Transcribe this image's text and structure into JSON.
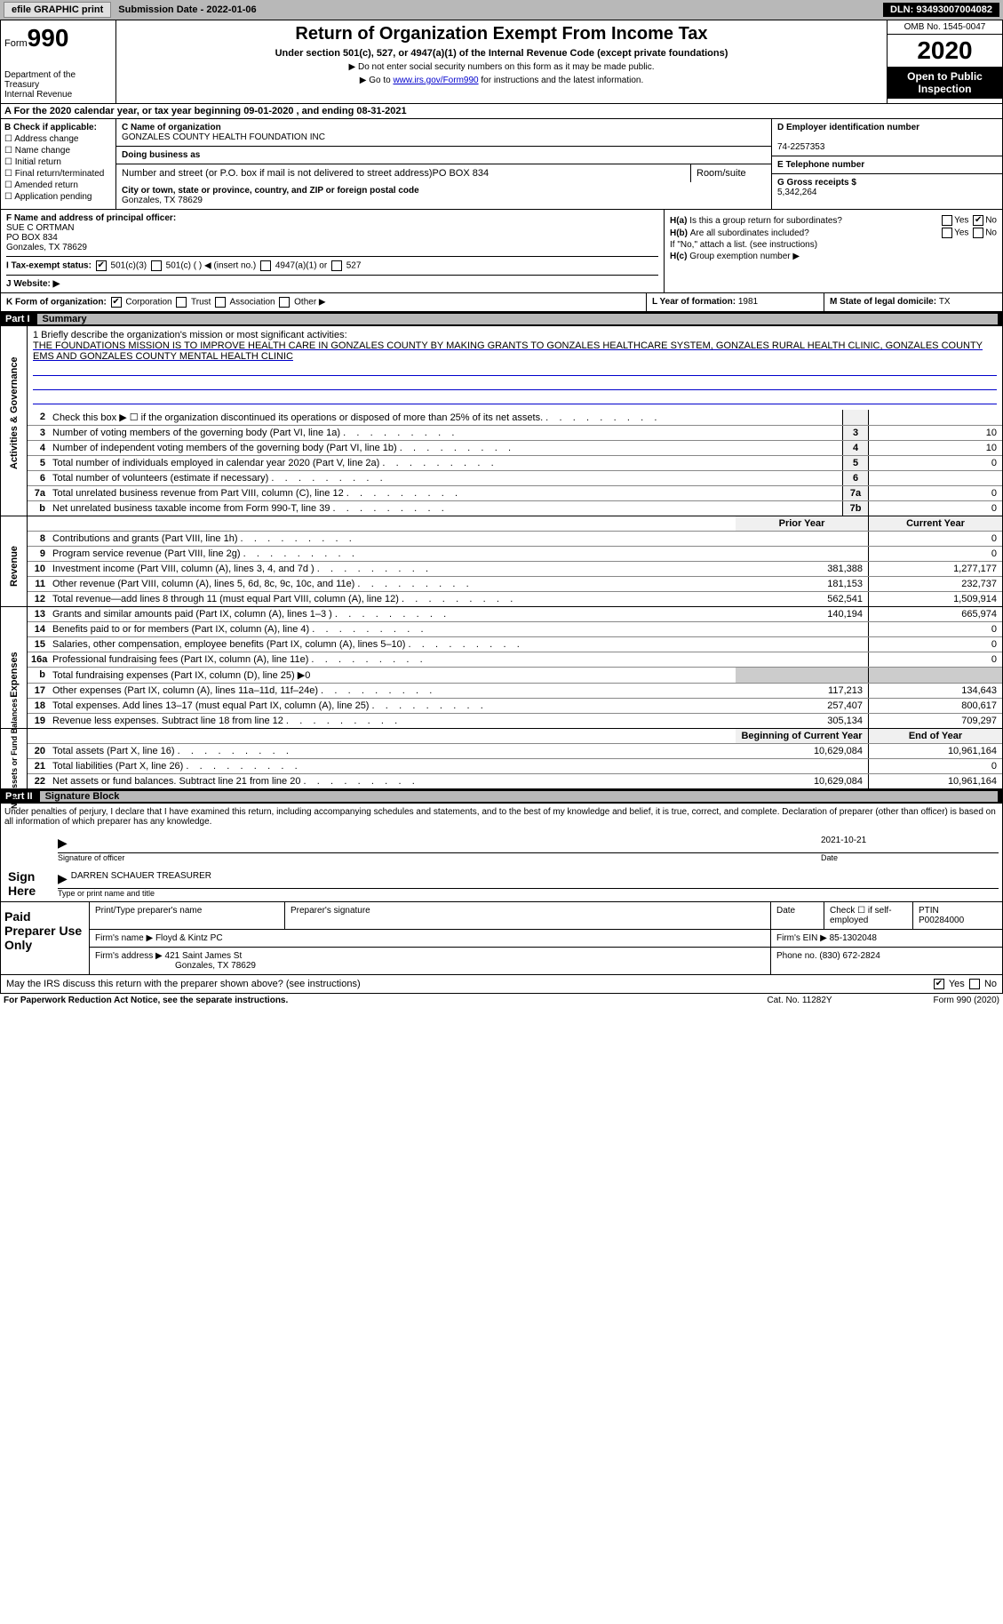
{
  "topbar": {
    "efile": "efile GRAPHIC print",
    "sub_label": "Submission Date - ",
    "sub_date": "2022-01-06",
    "dln_label": "DLN: ",
    "dln": "93493007004082"
  },
  "header": {
    "form_label": "Form",
    "form_no": "990",
    "dept": "Department of the Treasury\nInternal Revenue",
    "title": "Return of Organization Exempt From Income Tax",
    "sub1": "Under section 501(c), 527, or 4947(a)(1) of the Internal Revenue Code (except private foundations)",
    "sub2a": "▶ Do not enter social security numbers on this form as it may be made public.",
    "sub2b": "▶ Go to ",
    "link": "www.irs.gov/Form990",
    "sub2c": " for instructions and the latest information.",
    "omb": "OMB No. 1545-0047",
    "year": "2020",
    "open": "Open to Public Inspection"
  },
  "row_a": "A For the 2020 calendar year, or tax year beginning 09-01-2020    , and ending 08-31-2021",
  "col_b": {
    "label": "B Check if applicable:",
    "opts": [
      "Address change",
      "Name change",
      "Initial return",
      "Final return/terminated",
      "Amended return",
      "Application pending"
    ]
  },
  "col_c": {
    "name_lbl": "C Name of organization",
    "name": "GONZALES COUNTY HEALTH FOUNDATION INC",
    "dba_lbl": "Doing business as",
    "dba": "",
    "addr_lbl": "Number and street (or P.O. box if mail is not delivered to street address)",
    "addr": "PO BOX 834",
    "room_lbl": "Room/suite",
    "room": "",
    "city_lbl": "City or town, state or province, country, and ZIP or foreign postal code",
    "city": "Gonzales, TX  78629"
  },
  "col_de": {
    "d_lbl": "D Employer identification number",
    "d": "74-2257353",
    "e_lbl": "E Telephone number",
    "e": "",
    "g_lbl": "G Gross receipts $ ",
    "g": "5,342,264"
  },
  "col_f": {
    "lbl": "F Name and address of principal officer:",
    "name": "SUE C ORTMAN",
    "addr1": "PO BOX 834",
    "addr2": "Gonzales, TX  78629"
  },
  "col_h": {
    "a_lbl": "H(a)",
    "a_q": "Is this a group return for subordinates?",
    "a_yes": "Yes",
    "a_no": "No",
    "b_lbl": "H(b)",
    "b_q": "Are all subordinates included?",
    "b_note": "If \"No,\" attach a list. (see instructions)",
    "c_lbl": "H(c)",
    "c_q": "Group exemption number ▶"
  },
  "row_i": {
    "lbl": "I   Tax-exempt status:",
    "o1": "501(c)(3)",
    "o2": "501(c) (  ) ◀ (insert no.)",
    "o3": "4947(a)(1) or",
    "o4": "527"
  },
  "row_j": "J   Website: ▶",
  "row_k": {
    "lbl": "K Form of organization:",
    "o1": "Corporation",
    "o2": "Trust",
    "o3": "Association",
    "o4": "Other ▶"
  },
  "row_l": {
    "lbl": "L Year of formation: ",
    "v": "1981"
  },
  "row_m": {
    "lbl": "M State of legal domicile: ",
    "v": "TX"
  },
  "part1": {
    "pn": "Part I",
    "pt": "Summary"
  },
  "mission": {
    "lbl": "1  Briefly describe the organization's mission or most significant activities:",
    "txt": "THE FOUNDATIONS MISSION IS TO IMPROVE HEALTH CARE IN GONZALES COUNTY BY MAKING GRANTS TO GONZALES HEALTHCARE SYSTEM, GONZALES RURAL HEALTH CLINIC, GONZALES COUNTY EMS AND GONZALES COUNTY MENTAL HEALTH CLINIC"
  },
  "side_labels": {
    "gov": "Activities & Governance",
    "rev": "Revenue",
    "exp": "Expenses",
    "net": "Net Assets or Fund Balances"
  },
  "gov_rows": [
    {
      "n": "2",
      "t": "Check this box ▶ ☐  if the organization discontinued its operations or disposed of more than 25% of its net assets."
    },
    {
      "n": "3",
      "t": "Number of voting members of the governing body (Part VI, line 1a)",
      "rn": "3",
      "v2": "10"
    },
    {
      "n": "4",
      "t": "Number of independent voting members of the governing body (Part VI, line 1b)",
      "rn": "4",
      "v2": "10"
    },
    {
      "n": "5",
      "t": "Total number of individuals employed in calendar year 2020 (Part V, line 2a)",
      "rn": "5",
      "v2": "0"
    },
    {
      "n": "6",
      "t": "Total number of volunteers (estimate if necessary)",
      "rn": "6",
      "v2": ""
    },
    {
      "n": "7a",
      "t": "Total unrelated business revenue from Part VIII, column (C), line 12",
      "rn": "7a",
      "v2": "0"
    },
    {
      "n": "b",
      "t": "Net unrelated business taxable income from Form 990-T, line 39",
      "rn": "7b",
      "v2": "0"
    }
  ],
  "col_hdrs": {
    "py": "Prior Year",
    "cy": "Current Year"
  },
  "rev_rows": [
    {
      "n": "8",
      "t": "Contributions and grants (Part VIII, line 1h)",
      "v1": "",
      "v2": "0"
    },
    {
      "n": "9",
      "t": "Program service revenue (Part VIII, line 2g)",
      "v1": "",
      "v2": "0"
    },
    {
      "n": "10",
      "t": "Investment income (Part VIII, column (A), lines 3, 4, and 7d )",
      "v1": "381,388",
      "v2": "1,277,177"
    },
    {
      "n": "11",
      "t": "Other revenue (Part VIII, column (A), lines 5, 6d, 8c, 9c, 10c, and 11e)",
      "v1": "181,153",
      "v2": "232,737"
    },
    {
      "n": "12",
      "t": "Total revenue—add lines 8 through 11 (must equal Part VIII, column (A), line 12)",
      "v1": "562,541",
      "v2": "1,509,914"
    }
  ],
  "exp_rows": [
    {
      "n": "13",
      "t": "Grants and similar amounts paid (Part IX, column (A), lines 1–3 )",
      "v1": "140,194",
      "v2": "665,974"
    },
    {
      "n": "14",
      "t": "Benefits paid to or for members (Part IX, column (A), line 4)",
      "v1": "",
      "v2": "0"
    },
    {
      "n": "15",
      "t": "Salaries, other compensation, employee benefits (Part IX, column (A), lines 5–10)",
      "v1": "",
      "v2": "0"
    },
    {
      "n": "16a",
      "t": "Professional fundraising fees (Part IX, column (A), line 11e)",
      "v1": "",
      "v2": "0"
    },
    {
      "n": "b",
      "t": "Total fundraising expenses (Part IX, column (D), line 25) ▶0",
      "shade": true
    },
    {
      "n": "17",
      "t": "Other expenses (Part IX, column (A), lines 11a–11d, 11f–24e)",
      "v1": "117,213",
      "v2": "134,643"
    },
    {
      "n": "18",
      "t": "Total expenses. Add lines 13–17 (must equal Part IX, column (A), line 25)",
      "v1": "257,407",
      "v2": "800,617"
    },
    {
      "n": "19",
      "t": "Revenue less expenses. Subtract line 18 from line 12",
      "v1": "305,134",
      "v2": "709,297"
    }
  ],
  "net_hdr": {
    "v1": "Beginning of Current Year",
    "v2": "End of Year"
  },
  "net_rows": [
    {
      "n": "20",
      "t": "Total assets (Part X, line 16)",
      "v1": "10,629,084",
      "v2": "10,961,164"
    },
    {
      "n": "21",
      "t": "Total liabilities (Part X, line 26)",
      "v1": "",
      "v2": "0"
    },
    {
      "n": "22",
      "t": "Net assets or fund balances. Subtract line 21 from line 20",
      "v1": "10,629,084",
      "v2": "10,961,164"
    }
  ],
  "part2": {
    "pn": "Part II",
    "pt": "Signature Block"
  },
  "sig": {
    "decl": "Under penalties of perjury, I declare that I have examined this return, including accompanying schedules and statements, and to the best of my knowledge and belief, it is true, correct, and complete. Declaration of preparer (other than officer) is based on all information of which preparer has any knowledge.",
    "sign_here": "Sign Here",
    "sig_lbl": "Signature of officer",
    "date_lbl": "Date",
    "date": "2021-10-21",
    "name": "DARREN SCHAUER TREASURER",
    "name_lbl": "Type or print name and title"
  },
  "prep": {
    "lbl": "Paid Preparer Use Only",
    "h1": "Print/Type preparer's name",
    "h2": "Preparer's signature",
    "h3": "Date",
    "h4": "Check ☐ if self-employed",
    "h5_lbl": "PTIN",
    "h5": "P00284000",
    "firm_lbl": "Firm's name   ▶ ",
    "firm": "Floyd & Kintz PC",
    "ein_lbl": "Firm's EIN ▶ ",
    "ein": "85-1302048",
    "addr_lbl": "Firm's address ▶ ",
    "addr1": "421 Saint James St",
    "addr2": "Gonzales, TX  78629",
    "phone_lbl": "Phone no. ",
    "phone": "(830) 672-2824"
  },
  "may": {
    "t": "May the IRS discuss this return with the preparer shown above? (see instructions)",
    "yes": "Yes",
    "no": "No"
  },
  "paperwork": {
    "l": "For Paperwork Reduction Act Notice, see the separate instructions.",
    "m": "Cat. No. 11282Y",
    "r": "Form 990 (2020)"
  }
}
